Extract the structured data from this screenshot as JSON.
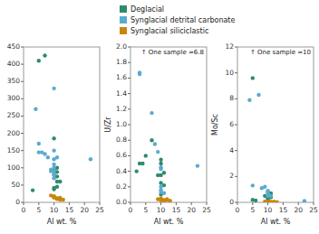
{
  "chart_data": [
    {
      "type": "scatter",
      "xlabel": "Al wt. %",
      "xlim": [
        0,
        25
      ],
      "xticks": [
        0,
        5,
        10,
        15,
        20,
        25
      ],
      "ylim": [
        0,
        450
      ],
      "yticks": [
        0,
        50,
        100,
        150,
        200,
        250,
        300,
        350,
        400,
        450
      ],
      "series": [
        {
          "name": "Deglacial",
          "color": "#2e8b6e",
          "x": [
            3,
            5,
            7,
            10,
            11,
            10,
            10,
            11,
            10,
            11,
            11,
            12,
            11,
            10,
            10
          ],
          "values": [
            35,
            410,
            425,
            185,
            100,
            95,
            90,
            88,
            80,
            75,
            60,
            60,
            45,
            42,
            38
          ]
        },
        {
          "name": "Synglacial detrital carbonate",
          "color": "#5baad0",
          "x": [
            4,
            5,
            5,
            6,
            7,
            8,
            9,
            9,
            10,
            10,
            10,
            10,
            10,
            10,
            10,
            10,
            11,
            22
          ],
          "values": [
            270,
            170,
            145,
            145,
            140,
            130,
            95,
            90,
            330,
            150,
            125,
            110,
            100,
            90,
            80,
            70,
            130,
            125
          ]
        },
        {
          "name": "Synglacial siliciclastic",
          "color": "#c8860a",
          "x": [
            9,
            10,
            10,
            10,
            11,
            11,
            11,
            12,
            12,
            13
          ],
          "values": [
            20,
            18,
            15,
            14,
            12,
            11,
            10,
            13,
            8,
            8
          ]
        }
      ]
    },
    {
      "type": "scatter",
      "xlabel": "Al wt. %",
      "ylabel": "U/Zr",
      "annotation": "↑ One sample ≈6.8",
      "xlim": [
        0,
        25
      ],
      "xticks": [
        0,
        5,
        10,
        15,
        20,
        25
      ],
      "ylim": [
        0,
        2
      ],
      "yticks": [
        {
          "value": 0,
          "label": "0.0"
        },
        0.2,
        0.4,
        0.6,
        0.8,
        {
          "value": 1,
          "label": "1.0"
        },
        1.2,
        1.4,
        1.6,
        1.8,
        {
          "value": 2,
          "label": "2.0"
        }
      ],
      "series": [
        {
          "color": "#2e8b6e",
          "x": [
            2,
            3,
            4,
            5,
            7,
            9,
            10,
            10,
            10,
            10,
            10,
            11,
            11
          ],
          "values": [
            0.4,
            0.5,
            0.5,
            0.6,
            0.8,
            0.35,
            0.55,
            0.5,
            0.35,
            0.25,
            0.1,
            0.38,
            0.22
          ]
        },
        {
          "color": "#5baad0",
          "x": [
            3,
            3,
            7,
            8,
            9,
            10,
            10,
            10,
            10,
            10,
            11,
            22
          ],
          "values": [
            1.65,
            1.67,
            1.15,
            0.75,
            0.65,
            0.45,
            0.43,
            0.2,
            0.16,
            0.13,
            0.12,
            0.47
          ]
        },
        {
          "color": "#c8860a",
          "x": [
            9,
            10,
            10,
            10,
            10,
            11,
            11,
            12,
            12,
            13
          ],
          "values": [
            0.04,
            0.05,
            0.04,
            0.03,
            0.03,
            0.03,
            0.02,
            0.04,
            0.03,
            0.02
          ]
        }
      ]
    },
    {
      "type": "scatter",
      "xlabel": "Al wt. %",
      "ylabel": "Mo/Sc",
      "annotation": "↑ One sample ≈10",
      "xlim": [
        0,
        25
      ],
      "xticks": [
        0,
        5,
        10,
        15,
        20,
        25
      ],
      "ylim": [
        0,
        12
      ],
      "yticks": [
        0,
        2,
        4,
        6,
        8,
        10,
        12
      ],
      "series": [
        {
          "color": "#2e8b6e",
          "x": [
            5,
            5,
            6,
            9,
            10,
            10,
            10,
            10,
            10,
            11,
            11
          ],
          "values": [
            9.6,
            0.2,
            0.15,
            0.5,
            0.8,
            0.5,
            0.4,
            0.3,
            0.2,
            0.7,
            0.4
          ]
        },
        {
          "color": "#5baad0",
          "x": [
            4,
            5,
            7,
            8,
            9,
            10,
            10,
            10,
            10,
            11,
            22
          ],
          "values": [
            7.9,
            1.3,
            8.3,
            1.1,
            1.2,
            0.9,
            0.7,
            0.6,
            0.5,
            0.5,
            0.1
          ]
        },
        {
          "color": "#c8860a",
          "x": [
            9,
            10,
            10,
            10,
            11,
            11,
            12,
            12,
            13
          ],
          "values": [
            0.05,
            0.05,
            0.04,
            0.03,
            0.03,
            0.02,
            0.04,
            0.03,
            0.02
          ]
        }
      ]
    }
  ]
}
